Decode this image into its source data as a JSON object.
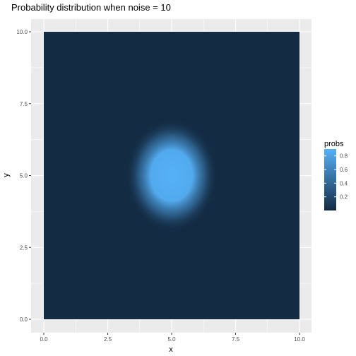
{
  "chart_data": {
    "type": "heatmap",
    "title": "Probability distribution when noise = 10",
    "xlabel": "x",
    "ylabel": "y",
    "xlim": [
      0,
      10
    ],
    "ylim": [
      0,
      10
    ],
    "x_ticks": [
      0,
      2.5,
      5,
      7.5,
      10
    ],
    "y_ticks": [
      0,
      2.5,
      5,
      7.5,
      10
    ],
    "x_tick_labels": [
      "0.0",
      "2.5",
      "5.0",
      "7.5",
      "10.0"
    ],
    "y_tick_labels": [
      "0.0",
      "2.5",
      "5.0",
      "7.5",
      "10.0"
    ],
    "grid": true,
    "distribution": {
      "center": [
        5,
        5
      ],
      "peak_prob": 0.9,
      "min_prob": 0.0,
      "sigma_x": 1.2,
      "sigma_y": 1.3
    },
    "legend": {
      "title": "probs",
      "placement": "right",
      "breaks": [
        0.2,
        0.4,
        0.6,
        0.8
      ],
      "labels": [
        "0.2",
        "0.4",
        "0.6",
        "0.8"
      ],
      "low_color": "#132b43",
      "high_color": "#56b1f7"
    },
    "colors": {
      "panel_background": "#ebebeb",
      "grid_major": "#ffffff"
    }
  }
}
